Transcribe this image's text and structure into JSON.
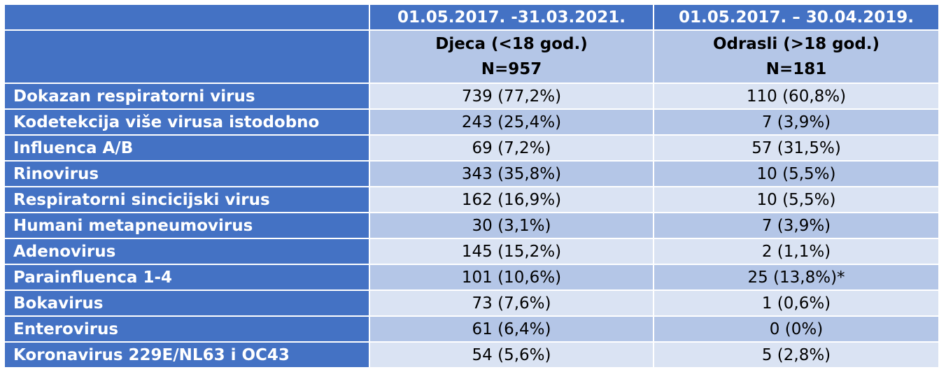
{
  "header": {
    "period_children": "01.05.2017. -31.03.2021.",
    "period_adults": "01.05.2017. – 30.04.2019.",
    "group_children": "Djeca (<18 god.)",
    "n_children": "N=957",
    "group_adults": "Odrasli (>18 god.)",
    "n_adults": "N=181"
  },
  "rows": [
    {
      "label": "Dokazan respiratorni virus",
      "children": "739 (77,2%)",
      "adults": "110 (60,8%)"
    },
    {
      "label": "Kodetekcija više virusa istodobno",
      "children": "243 (25,4%)",
      "adults": "7 (3,9%)"
    },
    {
      "label": "Influenca A/B",
      "children": "69 (7,2%)",
      "adults": "57 (31,5%)"
    },
    {
      "label": "Rinovirus",
      "children": "343 (35,8%)",
      "adults": "10 (5,5%)"
    },
    {
      "label": "Respiratorni sincicijski virus",
      "children": "162 (16,9%)",
      "adults": "10 (5,5%)"
    },
    {
      "label": "Humani metapneumovirus",
      "children": "30 (3,1%)",
      "adults": "7 (3,9%)"
    },
    {
      "label": "Adenovirus",
      "children": "145 (15,2%)",
      "adults": "2 (1,1%)"
    },
    {
      "label": "Parainfluenca 1-4",
      "children": "101 (10,6%)",
      "adults": "25 (13,8%)*"
    },
    {
      "label": "Bokavirus",
      "children": "73 (7,6%)",
      "adults": "1 (0,6%)"
    },
    {
      "label": "Enterovirus",
      "children": "61 (6,4%)",
      "adults": "0 (0%)"
    },
    {
      "label": "Koronavirus 229E/NL63 i OC43",
      "children": "54 (5,6%)",
      "adults": "5 (2,8%)"
    }
  ],
  "colors": {
    "header_blue": "#4472c4",
    "band_light": "#dae3f3",
    "band_dark": "#b4c6e7"
  }
}
